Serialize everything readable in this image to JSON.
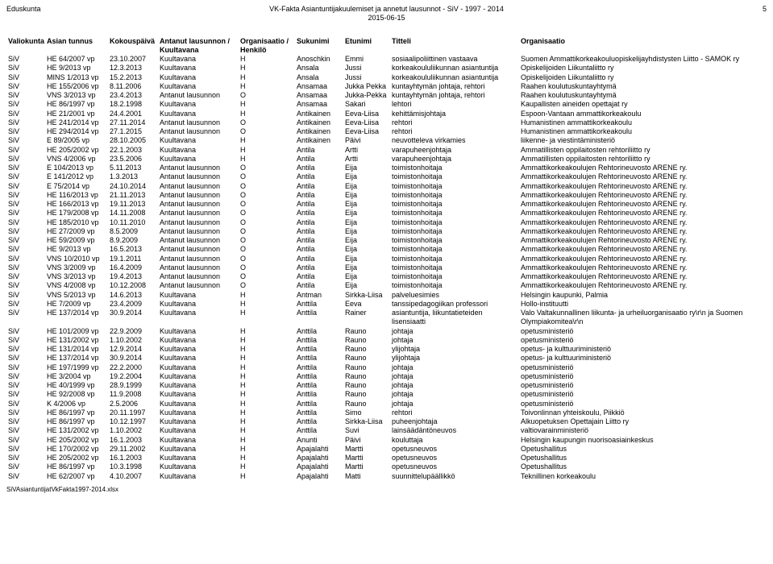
{
  "header": {
    "left": "Eduskunta",
    "center_line1": "VK-Fakta Asiantuntijakuulemiset ja annetut lausunnot - SiV - 1997 - 2014",
    "center_line2": "2015-06-15",
    "page_num": "5"
  },
  "columns": [
    "Valiokunta",
    "Asian tunnus",
    "Kokouspäivä",
    "Antanut lausunnon / Kuultavana",
    "Organisaatio / Henkilö",
    "Sukunimi",
    "Etunimi",
    "Titteli",
    "Organisaatio"
  ],
  "rows": [
    [
      "SiV",
      "HE 64/2007 vp",
      "23.10.2007",
      "Kuultavana",
      "H",
      "Anoschkin",
      "Emmi",
      "sosiaalipoliittinen vastaava",
      "Suomen Ammattikorkeakouluopiskelijayhdistysten Liitto - SAMOK ry"
    ],
    [
      "SiV",
      "HE 9/2013 vp",
      "12.3.2013",
      "Kuultavana",
      "H",
      "Ansala",
      "Jussi",
      "korkeakoululiikunnan asiantuntija",
      "Opiskelijoiden Liikuntaliitto ry"
    ],
    [
      "SiV",
      "MINS 1/2013 vp",
      "15.2.2013",
      "Kuultavana",
      "H",
      "Ansala",
      "Jussi",
      "korkeakoululiikunnan asiantuntija",
      "Opiskelijoiden Liikuntaliitto ry"
    ],
    [
      "SiV",
      "HE 155/2006 vp",
      "8.11.2006",
      "Kuultavana",
      "H",
      "Ansamaa",
      "Jukka Pekka",
      "kuntayhtymän johtaja, rehtori",
      "Raahen koulutuskuntayhtymä"
    ],
    [
      "SiV",
      "VNS 3/2013 vp",
      "23.4.2013",
      "Antanut lausunnon",
      "O",
      "Ansamaa",
      "Jukka-Pekka",
      "kuntayhtymän johtaja, rehtori",
      "Raahen koulutuskuntayhtymä"
    ],
    [
      "SiV",
      "HE 86/1997 vp",
      "18.2.1998",
      "Kuultavana",
      "H",
      "Ansamaa",
      "Sakari",
      "lehtori",
      "Kaupallisten aineiden opettajat ry"
    ],
    [
      "SiV",
      "HE 21/2001 vp",
      "24.4.2001",
      "Kuultavana",
      "H",
      "Antikainen",
      "Eeva-Liisa",
      "kehittämisjohtaja",
      "Espoon-Vantaan ammattikorkeakoulu"
    ],
    [
      "SiV",
      "HE 241/2014 vp",
      "27.11.2014",
      "Antanut lausunnon",
      "O",
      "Antikainen",
      "Eeva-Liisa",
      "rehtori",
      "Humanistinen ammattikorkeakoulu"
    ],
    [
      "SiV",
      "HE 294/2014 vp",
      "27.1.2015",
      "Antanut lausunnon",
      "O",
      "Antikainen",
      "Eeva-Liisa",
      "rehtori",
      "Humanistinen ammattikorkeakoulu"
    ],
    [
      "SiV",
      "E 89/2005 vp",
      "28.10.2005",
      "Kuultavana",
      "H",
      "Antikainen",
      "Päivi",
      "neuvotteleva virkamies",
      "liikenne- ja viestintäministeriö"
    ],
    [
      "SiV",
      "HE 205/2002 vp",
      "22.1.2003",
      "Kuultavana",
      "H",
      "Antila",
      "Artti",
      "varapuheenjohtaja",
      "Ammatillisten oppilaitosten rehtoriliitto ry"
    ],
    [
      "SiV",
      "VNS 4/2006 vp",
      "23.5.2006",
      "Kuultavana",
      "H",
      "Antila",
      "Artti",
      "varapuheenjohtaja",
      "Ammatillisten oppilaitosten rehtoriliitto ry"
    ],
    [
      "SiV",
      "E 104/2013 vp",
      "5.11.2013",
      "Antanut lausunnon",
      "O",
      "Antila",
      "Eija",
      "toimistonhoitaja",
      "Ammattikorkeakoulujen Rehtorineuvosto ARENE ry."
    ],
    [
      "SiV",
      "E 141/2012 vp",
      "1.3.2013",
      "Antanut lausunnon",
      "O",
      "Antila",
      "Eija",
      "toimistonhoitaja",
      "Ammattikorkeakoulujen Rehtorineuvosto ARENE ry."
    ],
    [
      "SiV",
      "E 75/2014 vp",
      "24.10.2014",
      "Antanut lausunnon",
      "O",
      "Antila",
      "Eija",
      "toimistonhoitaja",
      "Ammattikorkeakoulujen Rehtorineuvosto ARENE ry."
    ],
    [
      "SiV",
      "HE 116/2013 vp",
      "21.11.2013",
      "Antanut lausunnon",
      "O",
      "Antila",
      "Eija",
      "toimistonhoitaja",
      "Ammattikorkeakoulujen Rehtorineuvosto ARENE ry."
    ],
    [
      "SiV",
      "HE 166/2013 vp",
      "19.11.2013",
      "Antanut lausunnon",
      "O",
      "Antila",
      "Eija",
      "toimistonhoitaja",
      "Ammattikorkeakoulujen Rehtorineuvosto ARENE ry."
    ],
    [
      "SiV",
      "HE 179/2008 vp",
      "14.11.2008",
      "Antanut lausunnon",
      "O",
      "Antila",
      "Eija",
      "toimistonhoitaja",
      "Ammattikorkeakoulujen Rehtorineuvosto ARENE ry."
    ],
    [
      "SiV",
      "HE 185/2010 vp",
      "10.11.2010",
      "Antanut lausunnon",
      "O",
      "Antila",
      "Eija",
      "toimistonhoitaja",
      "Ammattikorkeakoulujen Rehtorineuvosto ARENE ry."
    ],
    [
      "SiV",
      "HE 27/2009 vp",
      "8.5.2009",
      "Antanut lausunnon",
      "O",
      "Antila",
      "Eija",
      "toimistonhoitaja",
      "Ammattikorkeakoulujen Rehtorineuvosto ARENE ry."
    ],
    [
      "SiV",
      "HE 59/2009 vp",
      "8.9.2009",
      "Antanut lausunnon",
      "O",
      "Antila",
      "Eija",
      "toimistonhoitaja",
      "Ammattikorkeakoulujen Rehtorineuvosto ARENE ry."
    ],
    [
      "SiV",
      "HE 9/2013 vp",
      "16.5.2013",
      "Antanut lausunnon",
      "O",
      "Antila",
      "Eija",
      "toimistonhoitaja",
      "Ammattikorkeakoulujen Rehtorineuvosto ARENE ry."
    ],
    [
      "SiV",
      "VNS 10/2010 vp",
      "19.1.2011",
      "Antanut lausunnon",
      "O",
      "Antila",
      "Eija",
      "toimistonhoitaja",
      "Ammattikorkeakoulujen Rehtorineuvosto ARENE ry."
    ],
    [
      "SiV",
      "VNS 3/2009 vp",
      "16.4.2009",
      "Antanut lausunnon",
      "O",
      "Antila",
      "Eija",
      "toimistonhoitaja",
      "Ammattikorkeakoulujen Rehtorineuvosto ARENE ry."
    ],
    [
      "SiV",
      "VNS 3/2013 vp",
      "19.4.2013",
      "Antanut lausunnon",
      "O",
      "Antila",
      "Eija",
      "toimistonhoitaja",
      "Ammattikorkeakoulujen Rehtorineuvosto ARENE ry."
    ],
    [
      "SiV",
      "VNS 4/2008 vp",
      "10.12.2008",
      "Antanut lausunnon",
      "O",
      "Antila",
      "Eija",
      "toimistonhoitaja",
      "Ammattikorkeakoulujen Rehtorineuvosto ARENE ry."
    ],
    [
      "SiV",
      "VNS 5/2013 vp",
      "14.6.2013",
      "Kuultavana",
      "H",
      "Antman",
      "Sirkka-Liisa",
      "palveluesimies",
      "Helsingin kaupunki, Palmia"
    ],
    [
      "SiV",
      "HE 7/2009 vp",
      "23.4.2009",
      "Kuultavana",
      "H",
      "Anttila",
      "Eeva",
      "tanssipedagogiikan professori",
      "Hollo-instituutti"
    ],
    [
      "SiV",
      "HE 137/2014 vp",
      "30.9.2014",
      "Kuultavana",
      "H",
      "Anttila",
      "Rainer",
      "asiantuntija, liikuntatieteiden lisensiaatti",
      "Valo Valtakunnallinen liikunta- ja urheiluorganisaatio ry\\r\\n ja Suomen Olympiakomitea\\r\\n"
    ],
    [
      "SiV",
      "HE 101/2009 vp",
      "22.9.2009",
      "Kuultavana",
      "H",
      "Anttila",
      "Rauno",
      "johtaja",
      "opetusministeriö"
    ],
    [
      "SiV",
      "HE 131/2002 vp",
      "1.10.2002",
      "Kuultavana",
      "H",
      "Anttila",
      "Rauno",
      "johtaja",
      "opetusministeriö"
    ],
    [
      "SiV",
      "HE 131/2014 vp",
      "12.9.2014",
      "Kuultavana",
      "H",
      "Anttila",
      "Rauno",
      "ylijohtaja",
      "opetus- ja kulttuuriministeriö"
    ],
    [
      "SiV",
      "HE 137/2014 vp",
      "30.9.2014",
      "Kuultavana",
      "H",
      "Anttila",
      "Rauno",
      "ylijohtaja",
      "opetus- ja kulttuuriministeriö"
    ],
    [
      "SiV",
      "HE 197/1999 vp",
      "22.2.2000",
      "Kuultavana",
      "H",
      "Anttila",
      "Rauno",
      "johtaja",
      "opetusministeriö"
    ],
    [
      "SiV",
      "HE 3/2004 vp",
      "19.2.2004",
      "Kuultavana",
      "H",
      "Anttila",
      "Rauno",
      "johtaja",
      "opetusministeriö"
    ],
    [
      "SiV",
      "HE 40/1999 vp",
      "28.9.1999",
      "Kuultavana",
      "H",
      "Anttila",
      "Rauno",
      "johtaja",
      "opetusministeriö"
    ],
    [
      "SiV",
      "HE 92/2008 vp",
      "11.9.2008",
      "Kuultavana",
      "H",
      "Anttila",
      "Rauno",
      "johtaja",
      "opetusministeriö"
    ],
    [
      "SiV",
      "K 4/2006 vp",
      "2.5.2006",
      "Kuultavana",
      "H",
      "Anttila",
      "Rauno",
      "johtaja",
      "opetusministeriö"
    ],
    [
      "SiV",
      "HE 86/1997 vp",
      "20.11.1997",
      "Kuultavana",
      "H",
      "Anttila",
      "Simo",
      "rehtori",
      "Toivonlinnan yhteiskoulu, Piikkiö"
    ],
    [
      "SiV",
      "HE 86/1997 vp",
      "10.12.1997",
      "Kuultavana",
      "H",
      "Anttila",
      "Sirkka-Liisa",
      "puheenjohtaja",
      "Alkuopetuksen Opettajain Liitto ry"
    ],
    [
      "SiV",
      "HE 131/2002 vp",
      "1.10.2002",
      "Kuultavana",
      "H",
      "Anttila",
      "Suvi",
      "lainsäädäntöneuvos",
      "valtiovarainministeriö"
    ],
    [
      "SiV",
      "HE 205/2002 vp",
      "16.1.2003",
      "Kuultavana",
      "H",
      "Anunti",
      "Päivi",
      "kouluttaja",
      "Helsingin kaupungin nuorisoasiainkeskus"
    ],
    [
      "SiV",
      "HE 170/2002 vp",
      "29.11.2002",
      "Kuultavana",
      "H",
      "Apajalahti",
      "Martti",
      "opetusneuvos",
      "Opetushallitus"
    ],
    [
      "SiV",
      "HE 205/2002 vp",
      "16.1.2003",
      "Kuultavana",
      "H",
      "Apajalahti",
      "Martti",
      "opetusneuvos",
      "Opetushallitus"
    ],
    [
      "SiV",
      "HE 86/1997 vp",
      "10.3.1998",
      "Kuultavana",
      "H",
      "Apajalahti",
      "Martti",
      "opetusneuvos",
      "Opetushallitus"
    ],
    [
      "SiV",
      "HE 62/2007 vp",
      "4.10.2007",
      "Kuultavana",
      "H",
      "Apajalahti",
      "Matti",
      "suunnittelupäällikkö",
      "Teknillinen korkeakoulu"
    ]
  ],
  "footer": "SiVAsiantuntijatVkFakta1997-2014.xlsx"
}
